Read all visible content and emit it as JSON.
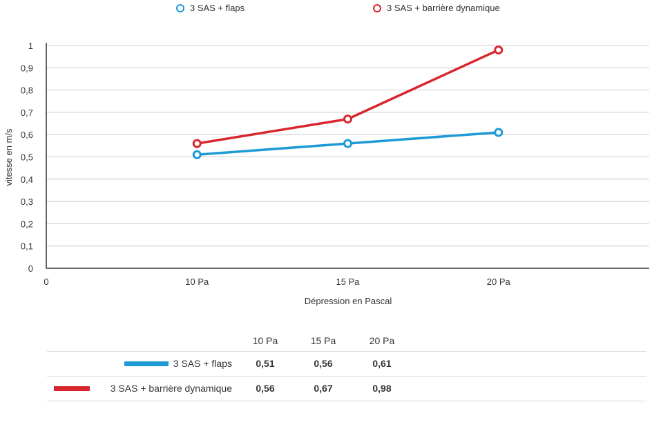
{
  "colors": {
    "series1": "#1e9ad6",
    "series2": "#d9262e",
    "grid": "#cccccc",
    "axis": "#333333"
  },
  "legend": [
    {
      "label": "3 SAS + flaps"
    },
    {
      "label": "3 SAS + barrière dynamique"
    }
  ],
  "chart_data": {
    "type": "line",
    "title": "",
    "xlabel": "Dépression en Pascal",
    "ylabel": "vitesse en m/s",
    "x_origin_label": "0",
    "categories": [
      "10 Pa",
      "15 Pa",
      "20 Pa"
    ],
    "ylim": [
      0,
      1
    ],
    "yticks": [
      "0",
      "0,1",
      "0,2",
      "0,3",
      "0,4",
      "0,5",
      "0,6",
      "0,7",
      "0,8",
      "0,9",
      "1"
    ],
    "grid": true,
    "legend_position": "top",
    "series": [
      {
        "name": "3 SAS + flaps",
        "values": [
          0.51,
          0.56,
          0.61
        ]
      },
      {
        "name": "3 SAS + barrière dynamique",
        "values": [
          0.56,
          0.67,
          0.98
        ]
      }
    ]
  },
  "table": {
    "headers": [
      "10 Pa",
      "15 Pa",
      "20 Pa"
    ],
    "rows": [
      {
        "label": "3 SAS + flaps",
        "values": [
          "0,51",
          "0,56",
          "0,61"
        ]
      },
      {
        "label": "3 SAS + barrière dynamique",
        "values": [
          "0,56",
          "0,67",
          "0,98"
        ]
      }
    ]
  }
}
